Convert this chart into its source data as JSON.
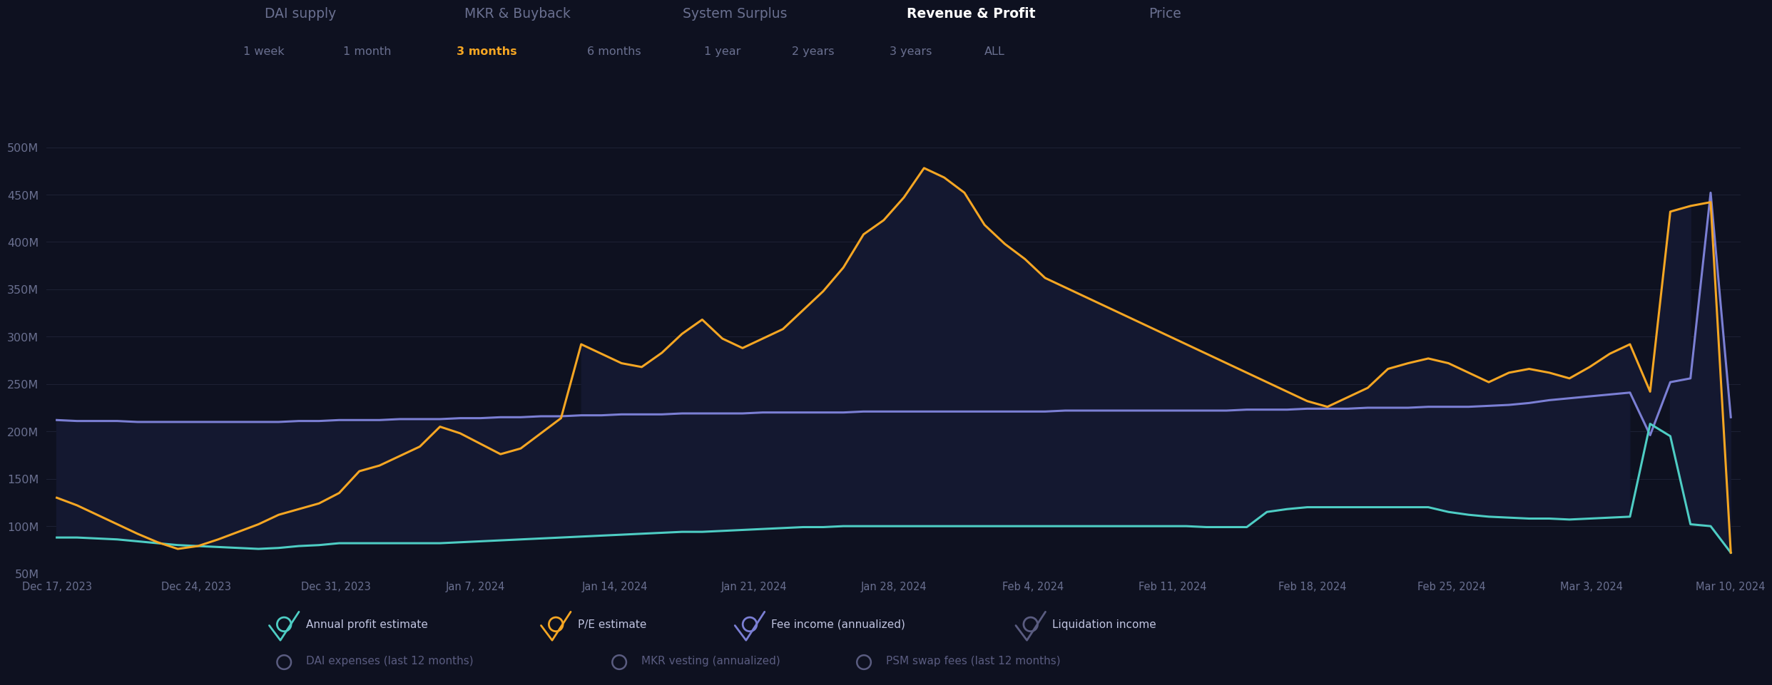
{
  "bg_color": "#0e1120",
  "plot_bg_color": "#0e1120",
  "title_tabs": [
    "DAI supply",
    "MKR & Buyback",
    "System Surplus",
    "Revenue & Profit",
    "Price"
  ],
  "active_tab": "Revenue & Profit",
  "time_tabs": [
    "1 week",
    "1 month",
    "3 months",
    "6 months",
    "1 year",
    "2 years",
    "3 years",
    "ALL"
  ],
  "active_time_tab": "3 months",
  "xtick_labels": [
    "Dec 17, 2023",
    "Dec 24, 2023",
    "Dec 31, 2023",
    "Jan 7, 2024",
    "Jan 14, 2024",
    "Jan 21, 2024",
    "Jan 28, 2024",
    "Feb 4, 2024",
    "Feb 11, 2024",
    "Feb 18, 2024",
    "Feb 25, 2024",
    "Mar 3, 2024",
    "Mar 10, 2024"
  ],
  "series": {
    "annual_profit": {
      "color": "#4ecdc4",
      "linewidth": 2.2,
      "y": [
        88,
        88,
        87,
        86,
        84,
        82,
        80,
        79,
        78,
        77,
        76,
        77,
        79,
        80,
        82,
        82,
        82,
        82,
        82,
        82,
        83,
        84,
        85,
        86,
        87,
        88,
        89,
        90,
        91,
        92,
        93,
        94,
        94,
        95,
        96,
        97,
        98,
        99,
        99,
        100,
        100,
        100,
        100,
        100,
        100,
        100,
        100,
        100,
        100,
        100,
        100,
        100,
        100,
        100,
        100,
        100,
        100,
        99,
        99,
        99,
        115,
        118,
        120,
        120,
        120,
        120,
        120,
        120,
        120,
        115,
        112,
        110,
        109,
        108,
        108,
        107,
        108,
        109,
        110,
        208,
        195,
        102,
        100,
        72
      ]
    },
    "pe_estimate": {
      "color": "#f5a623",
      "linewidth": 2.2,
      "y": [
        130,
        122,
        112,
        102,
        92,
        83,
        76,
        79,
        86,
        94,
        102,
        112,
        118,
        124,
        135,
        158,
        164,
        174,
        184,
        205,
        198,
        187,
        176,
        182,
        198,
        214,
        292,
        282,
        272,
        268,
        283,
        303,
        318,
        298,
        288,
        298,
        308,
        328,
        348,
        373,
        408,
        423,
        447,
        478,
        468,
        452,
        418,
        398,
        382,
        362,
        352,
        342,
        332,
        322,
        312,
        302,
        292,
        282,
        272,
        262,
        252,
        242,
        232,
        226,
        236,
        246,
        266,
        272,
        277,
        272,
        262,
        252,
        262,
        266,
        262,
        256,
        268,
        282,
        292,
        242,
        432,
        438,
        442,
        72
      ]
    },
    "fee_income": {
      "color": "#7b7fd4",
      "linewidth": 2.2,
      "y": [
        212,
        211,
        211,
        211,
        210,
        210,
        210,
        210,
        210,
        210,
        210,
        210,
        211,
        211,
        212,
        212,
        212,
        213,
        213,
        213,
        214,
        214,
        215,
        215,
        216,
        216,
        217,
        217,
        218,
        218,
        218,
        219,
        219,
        219,
        219,
        220,
        220,
        220,
        220,
        220,
        221,
        221,
        221,
        221,
        221,
        221,
        221,
        221,
        221,
        221,
        222,
        222,
        222,
        222,
        222,
        222,
        222,
        222,
        222,
        223,
        223,
        223,
        224,
        224,
        224,
        225,
        225,
        225,
        226,
        226,
        226,
        227,
        228,
        230,
        233,
        235,
        237,
        239,
        241,
        196,
        252,
        256,
        452,
        215
      ]
    }
  }
}
